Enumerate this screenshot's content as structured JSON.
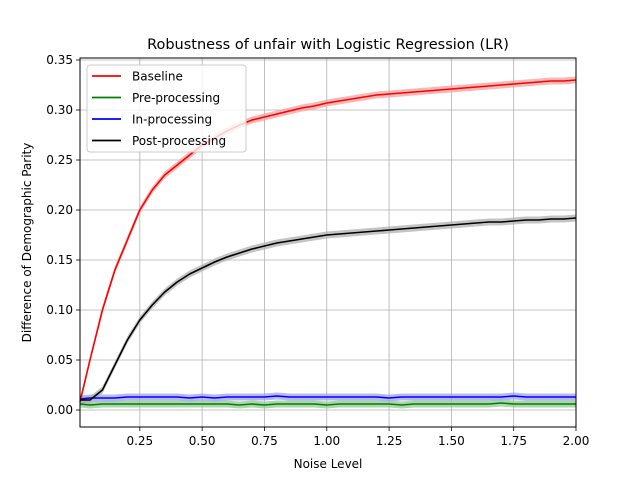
{
  "chart_data": {
    "type": "line",
    "title": "Robustness of unfair with Logistic Regression (LR)",
    "xlabel": "Noise Level",
    "ylabel": "Difference of Demographic Parity",
    "xlim": [
      0.01,
      2.0
    ],
    "ylim": [
      -0.017,
      0.352
    ],
    "xticks": [
      0.25,
      0.5,
      0.75,
      1.0,
      1.25,
      1.5,
      1.75,
      2.0
    ],
    "xtick_labels": [
      "0.25",
      "0.50",
      "0.75",
      "1.00",
      "1.25",
      "1.50",
      "1.75",
      "2.00"
    ],
    "yticks": [
      0.0,
      0.05,
      0.1,
      0.15,
      0.2,
      0.25,
      0.3,
      0.35
    ],
    "ytick_labels": [
      "0.00",
      "0.05",
      "0.10",
      "0.15",
      "0.20",
      "0.25",
      "0.30",
      "0.35"
    ],
    "grid": true,
    "legend_position": "top-left",
    "x": [
      0.01,
      0.05,
      0.1,
      0.15,
      0.2,
      0.25,
      0.3,
      0.35,
      0.4,
      0.45,
      0.5,
      0.55,
      0.6,
      0.65,
      0.7,
      0.75,
      0.8,
      0.85,
      0.9,
      0.95,
      1.0,
      1.05,
      1.1,
      1.15,
      1.2,
      1.25,
      1.3,
      1.35,
      1.4,
      1.45,
      1.5,
      1.55,
      1.6,
      1.65,
      1.7,
      1.75,
      1.8,
      1.85,
      1.9,
      1.95,
      2.0
    ],
    "series": [
      {
        "name": "Baseline",
        "color": "#ff0000",
        "band_color": "#f4a0a0",
        "values": [
          0.008,
          0.05,
          0.1,
          0.14,
          0.17,
          0.2,
          0.22,
          0.235,
          0.245,
          0.255,
          0.265,
          0.272,
          0.279,
          0.285,
          0.29,
          0.293,
          0.296,
          0.299,
          0.302,
          0.304,
          0.307,
          0.309,
          0.311,
          0.313,
          0.315,
          0.316,
          0.317,
          0.318,
          0.319,
          0.32,
          0.321,
          0.322,
          0.323,
          0.324,
          0.325,
          0.326,
          0.327,
          0.328,
          0.329,
          0.329,
          0.33
        ]
      },
      {
        "name": "Pre-processing",
        "color": "#008000",
        "band_color": "#90c890",
        "values": [
          0.006,
          0.005,
          0.006,
          0.006,
          0.006,
          0.006,
          0.006,
          0.006,
          0.006,
          0.006,
          0.006,
          0.006,
          0.006,
          0.005,
          0.006,
          0.005,
          0.006,
          0.006,
          0.006,
          0.006,
          0.005,
          0.006,
          0.006,
          0.006,
          0.006,
          0.006,
          0.005,
          0.006,
          0.006,
          0.006,
          0.006,
          0.006,
          0.006,
          0.006,
          0.007,
          0.006,
          0.006,
          0.006,
          0.006,
          0.006,
          0.006
        ]
      },
      {
        "name": "In-processing",
        "color": "#0000ff",
        "band_color": "#a0a0f4",
        "values": [
          0.011,
          0.012,
          0.012,
          0.012,
          0.013,
          0.013,
          0.013,
          0.013,
          0.013,
          0.012,
          0.013,
          0.012,
          0.013,
          0.013,
          0.013,
          0.013,
          0.014,
          0.013,
          0.013,
          0.013,
          0.013,
          0.013,
          0.013,
          0.013,
          0.013,
          0.012,
          0.013,
          0.013,
          0.013,
          0.013,
          0.013,
          0.013,
          0.013,
          0.013,
          0.013,
          0.014,
          0.013,
          0.013,
          0.013,
          0.013,
          0.013
        ]
      },
      {
        "name": "Post-processing",
        "color": "#000000",
        "band_color": "#b0b0b0",
        "values": [
          0.01,
          0.01,
          0.02,
          0.045,
          0.07,
          0.09,
          0.105,
          0.118,
          0.128,
          0.136,
          0.142,
          0.148,
          0.153,
          0.157,
          0.161,
          0.164,
          0.167,
          0.169,
          0.171,
          0.173,
          0.175,
          0.176,
          0.177,
          0.178,
          0.179,
          0.18,
          0.181,
          0.182,
          0.183,
          0.184,
          0.185,
          0.186,
          0.187,
          0.188,
          0.188,
          0.189,
          0.19,
          0.19,
          0.191,
          0.191,
          0.192
        ]
      }
    ]
  }
}
